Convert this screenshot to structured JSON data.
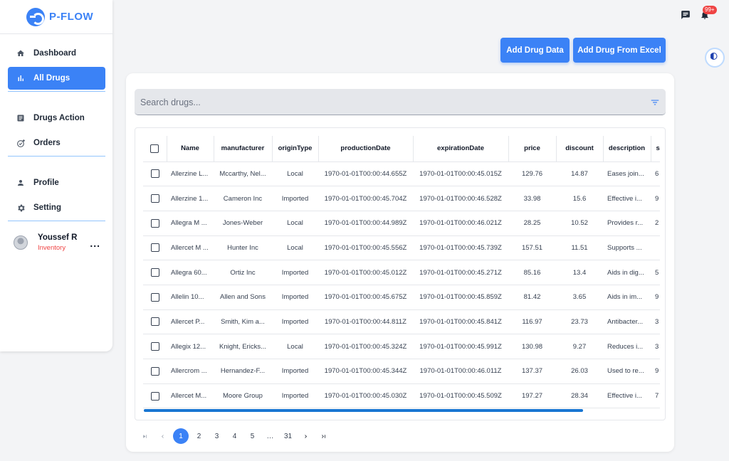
{
  "app": {
    "logo_text": "P-FLOW"
  },
  "sidebar": {
    "items": [
      {
        "label": "Dashboard",
        "icon": "home-icon"
      },
      {
        "label": "All Drugs",
        "icon": "bar-chart-icon",
        "active": true
      },
      {
        "label": "Drugs Action",
        "icon": "document-icon"
      },
      {
        "label": "Orders",
        "icon": "cart-check-icon"
      },
      {
        "label": "Profile",
        "icon": "person-icon"
      },
      {
        "label": "Setting",
        "icon": "gear-icon"
      }
    ],
    "user": {
      "name": "Youssef R",
      "role": "Inventory",
      "more": "..."
    }
  },
  "header": {
    "notification_badge": "99+"
  },
  "toolbar": {
    "add_drug_label": "Add Drug Data",
    "add_excel_label": "Add Drug From Excel"
  },
  "search": {
    "placeholder": "Search drugs..."
  },
  "table": {
    "columns": [
      "Name",
      "manufacturer",
      "originType",
      "productionDate",
      "expirationDate",
      "price",
      "discount",
      "description",
      "s"
    ],
    "rows": [
      [
        "Allerzine L...",
        "Mccarthy, Nel...",
        "Local",
        "1970-01-01T00:00:44.655Z",
        "1970-01-01T00:00:45.015Z",
        "129.76",
        "14.87",
        "Eases join...",
        "6"
      ],
      [
        "Allerzine 1...",
        "Cameron Inc",
        "Imported",
        "1970-01-01T00:00:45.704Z",
        "1970-01-01T00:00:46.528Z",
        "33.98",
        "15.6",
        "Effective i...",
        "9"
      ],
      [
        "Allegra M ...",
        "Jones-Weber",
        "Local",
        "1970-01-01T00:00:44.989Z",
        "1970-01-01T00:00:46.021Z",
        "28.25",
        "10.52",
        "Provides r...",
        "2"
      ],
      [
        "Allercet M ...",
        "Hunter Inc",
        "Local",
        "1970-01-01T00:00:45.556Z",
        "1970-01-01T00:00:45.739Z",
        "157.51",
        "11.51",
        "Supports ...",
        ""
      ],
      [
        "Allegra 60...",
        "Ortiz Inc",
        "Imported",
        "1970-01-01T00:00:45.012Z",
        "1970-01-01T00:00:45.271Z",
        "85.16",
        "13.4",
        "Aids in dig...",
        "5"
      ],
      [
        "Allelin 10...",
        "Allen and Sons",
        "Imported",
        "1970-01-01T00:00:45.675Z",
        "1970-01-01T00:00:45.859Z",
        "81.42",
        "3.65",
        "Aids in im...",
        "9"
      ],
      [
        "Allercet P...",
        "Smith, Kim a...",
        "Imported",
        "1970-01-01T00:00:44.811Z",
        "1970-01-01T00:00:45.841Z",
        "116.97",
        "23.73",
        "Antibacter...",
        "3"
      ],
      [
        "Allegix 12...",
        "Knight, Ericks...",
        "Local",
        "1970-01-01T00:00:45.324Z",
        "1970-01-01T00:00:45.991Z",
        "130.98",
        "9.27",
        "Reduces i...",
        "3"
      ],
      [
        "Allercrom ...",
        "Hernandez-F...",
        "Imported",
        "1970-01-01T00:00:45.344Z",
        "1970-01-01T00:00:46.011Z",
        "137.37",
        "26.03",
        "Used to re...",
        "9"
      ],
      [
        "Allercet M...",
        "Moore Group",
        "Imported",
        "1970-01-01T00:00:45.030Z",
        "1970-01-01T00:00:45.509Z",
        "197.27",
        "28.34",
        "Effective i...",
        "7"
      ]
    ]
  },
  "pagination": {
    "pages": [
      "1",
      "2",
      "3",
      "4",
      "5"
    ],
    "ellipsis": "…",
    "last": "31",
    "current": "1"
  },
  "colors": {
    "accent": "#3b82f6",
    "badge": "#ef4444",
    "role": "#ef4444",
    "scrollbar": "#1976d2"
  }
}
